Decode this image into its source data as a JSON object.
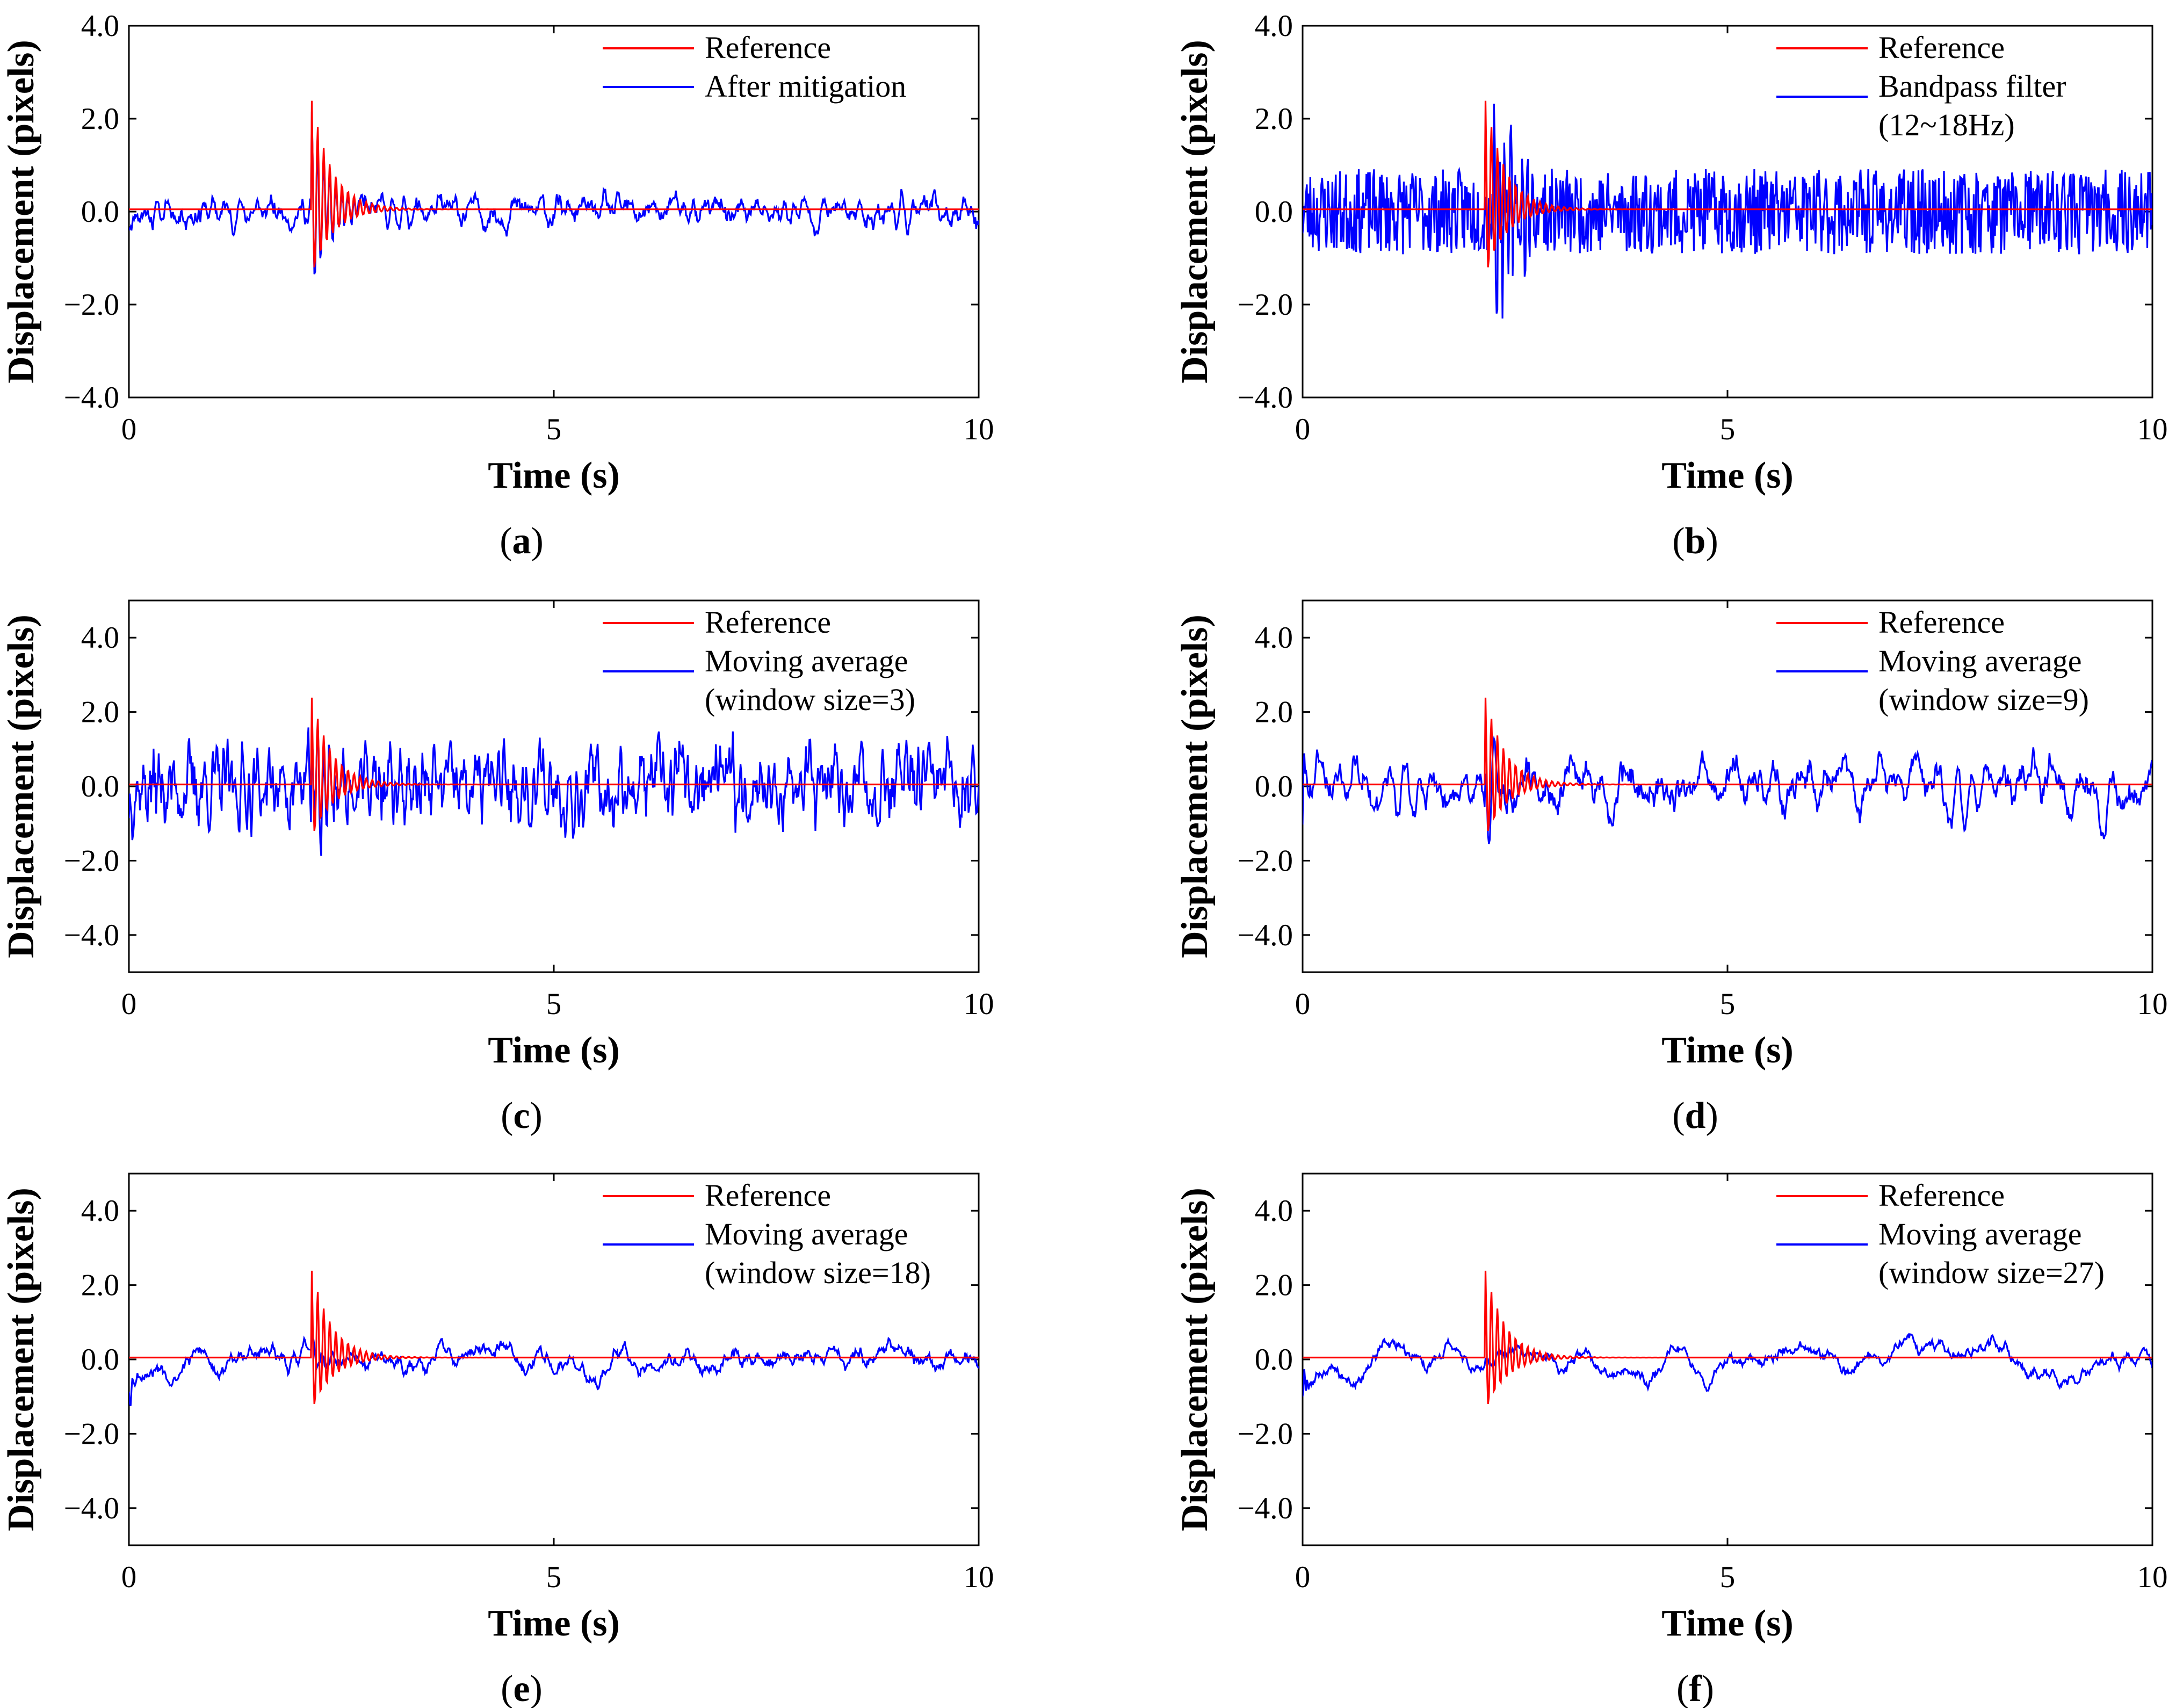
{
  "figure": {
    "colors": {
      "reference": "#ff0000",
      "filtered": "#0000ff",
      "axis": "#000000",
      "background": "#ffffff"
    }
  },
  "chart_data": [
    {
      "id": "a",
      "caption": "a",
      "type": "line",
      "xlabel": "Time (s)",
      "ylabel": "Displacement (pixels)",
      "xlim": [
        0,
        10
      ],
      "ylim": [
        -4.0,
        4.0
      ],
      "xticks": [
        "0",
        "5",
        "10"
      ],
      "yticks": [
        {
          "value": -4.0,
          "label": "−4.0"
        },
        {
          "value": -2.0,
          "label": "−2.0"
        },
        {
          "value": 0.0,
          "label": "0.0"
        },
        {
          "value": 2.0,
          "label": "2.0"
        },
        {
          "value": 4.0,
          "label": "4.0"
        }
      ],
      "legend": {
        "position": "top-right",
        "entries": [
          [
            "Reference"
          ],
          [
            "After mitigation"
          ]
        ]
      },
      "series": [
        {
          "name": "Reference",
          "color": "#ff0000",
          "impulse_time": 2.15,
          "peak": 2.4,
          "trough": -1.5,
          "offset": 0.05,
          "samples": 1000
        },
        {
          "name": "After mitigation",
          "color": "#0000ff",
          "noise_amp": 0.32,
          "smooth": 6,
          "burst": 2.0,
          "burst_decay": 5,
          "burst_freq": 14,
          "burst_time": 2.15,
          "seed": 11,
          "samples": 1000
        }
      ]
    },
    {
      "id": "b",
      "caption": "b",
      "type": "line",
      "xlabel": "Time (s)",
      "ylabel": "Displacement (pixels)",
      "xlim": [
        0,
        10
      ],
      "ylim": [
        -4.0,
        4.0
      ],
      "xticks": [
        "0",
        "5",
        "10"
      ],
      "yticks": [
        {
          "value": -4.0,
          "label": "−4.0"
        },
        {
          "value": -2.0,
          "label": "−2.0"
        },
        {
          "value": 0.0,
          "label": "0.0"
        },
        {
          "value": 2.0,
          "label": "2.0"
        },
        {
          "value": 4.0,
          "label": "4.0"
        }
      ],
      "legend": {
        "position": "top-right",
        "entries": [
          [
            "Reference"
          ],
          [
            "Bandpass filter",
            "(12~18Hz)"
          ]
        ]
      },
      "series": [
        {
          "name": "Reference",
          "color": "#ff0000",
          "impulse_time": 2.15,
          "peak": 2.4,
          "trough": -1.5,
          "offset": 0.05,
          "samples": 1000
        },
        {
          "name": "Bandpass filter (12~18Hz)",
          "color": "#0000ff",
          "noise_amp": 0.55,
          "smooth": 1,
          "burst": 2.2,
          "burst_decay": 3.5,
          "burst_freq": 15,
          "burst_time": 2.25,
          "seed": 23,
          "samples": 1000
        }
      ]
    },
    {
      "id": "c",
      "caption": "c",
      "type": "line",
      "xlabel": "Time (s)",
      "ylabel": "Displacement (pixels)",
      "xlim": [
        0,
        10
      ],
      "ylim": [
        -5.0,
        5.0
      ],
      "xticks": [
        "0",
        "5",
        "10"
      ],
      "yticks": [
        {
          "value": -4.0,
          "label": "−4.0"
        },
        {
          "value": -2.0,
          "label": "−2.0"
        },
        {
          "value": 0.0,
          "label": "0.0"
        },
        {
          "value": 2.0,
          "label": "2.0"
        },
        {
          "value": 4.0,
          "label": "4.0"
        }
      ],
      "legend": {
        "position": "top-right",
        "entries": [
          [
            "Reference"
          ],
          [
            "Moving average",
            "(window size=3)"
          ]
        ]
      },
      "series": [
        {
          "name": "Reference",
          "color": "#ff0000",
          "impulse_time": 2.15,
          "peak": 2.4,
          "trough": -1.5,
          "offset": 0.05,
          "samples": 1000
        },
        {
          "name": "Moving average (window size=3)",
          "color": "#0000ff",
          "noise_amp": 0.95,
          "smooth": 3,
          "burst": 1.8,
          "burst_decay": 5,
          "burst_freq": 14,
          "burst_time": 2.15,
          "seed": 37,
          "samples": 1000
        }
      ]
    },
    {
      "id": "d",
      "caption": "d",
      "type": "line",
      "xlabel": "Time (s)",
      "ylabel": "Displacement (pixels)",
      "xlim": [
        0,
        10
      ],
      "ylim": [
        -5.0,
        5.0
      ],
      "xticks": [
        "0",
        "5",
        "10"
      ],
      "yticks": [
        {
          "value": -4.0,
          "label": "−4.0"
        },
        {
          "value": -2.0,
          "label": "−2.0"
        },
        {
          "value": 0.0,
          "label": "0.0"
        },
        {
          "value": 2.0,
          "label": "2.0"
        },
        {
          "value": 4.0,
          "label": "4.0"
        }
      ],
      "legend": {
        "position": "top-right",
        "entries": [
          [
            "Reference"
          ],
          [
            "Moving average",
            "(window size=9)"
          ]
        ]
      },
      "series": [
        {
          "name": "Reference",
          "color": "#ff0000",
          "impulse_time": 2.15,
          "peak": 2.4,
          "trough": -1.5,
          "offset": 0.05,
          "samples": 1000
        },
        {
          "name": "Moving average (window size=9)",
          "color": "#0000ff",
          "noise_amp": 0.85,
          "smooth": 9,
          "burst": 1.0,
          "burst_decay": 5,
          "burst_freq": 10,
          "burst_time": 2.15,
          "seed": 41,
          "samples": 1000
        }
      ]
    },
    {
      "id": "e",
      "caption": "e",
      "type": "line",
      "xlabel": "Time (s)",
      "ylabel": "Displacement (pixels)",
      "xlim": [
        0,
        10
      ],
      "ylim": [
        -5.0,
        5.0
      ],
      "xticks": [
        "0",
        "5",
        "10"
      ],
      "yticks": [
        {
          "value": -4.0,
          "label": "−4.0"
        },
        {
          "value": -2.0,
          "label": "−2.0"
        },
        {
          "value": 0.0,
          "label": "0.0"
        },
        {
          "value": 2.0,
          "label": "2.0"
        },
        {
          "value": 4.0,
          "label": "4.0"
        }
      ],
      "legend": {
        "position": "top-right",
        "entries": [
          [
            "Reference"
          ],
          [
            "Moving average",
            "(window size=18)"
          ]
        ]
      },
      "series": [
        {
          "name": "Reference",
          "color": "#ff0000",
          "impulse_time": 2.15,
          "peak": 2.4,
          "trough": -1.5,
          "offset": 0.05,
          "samples": 1000
        },
        {
          "name": "Moving average (window size=18)",
          "color": "#0000ff",
          "noise_amp": 0.75,
          "smooth": 18,
          "burst": 0.4,
          "burst_decay": 5,
          "burst_freq": 8,
          "burst_time": 2.15,
          "seed": 53,
          "samples": 1000
        }
      ]
    },
    {
      "id": "f",
      "caption": "f",
      "type": "line",
      "xlabel": "Time (s)",
      "ylabel": "Displacement (pixels)",
      "xlim": [
        0,
        10
      ],
      "ylim": [
        -5.0,
        5.0
      ],
      "xticks": [
        "0",
        "5",
        "10"
      ],
      "yticks": [
        {
          "value": -4.0,
          "label": "−4.0"
        },
        {
          "value": -2.0,
          "label": "−2.0"
        },
        {
          "value": 0.0,
          "label": "0.0"
        },
        {
          "value": 2.0,
          "label": "2.0"
        },
        {
          "value": 4.0,
          "label": "4.0"
        }
      ],
      "legend": {
        "position": "top-right",
        "entries": [
          [
            "Reference"
          ],
          [
            "Moving average",
            "(window size=27)"
          ]
        ]
      },
      "series": [
        {
          "name": "Reference",
          "color": "#ff0000",
          "impulse_time": 2.15,
          "peak": 2.4,
          "trough": -1.5,
          "offset": 0.05,
          "samples": 1000
        },
        {
          "name": "Moving average (window size=27)",
          "color": "#0000ff",
          "noise_amp": 0.6,
          "smooth": 27,
          "burst": 0.2,
          "burst_decay": 5,
          "burst_freq": 6,
          "burst_time": 2.15,
          "seed": 67,
          "samples": 1000
        }
      ]
    }
  ]
}
